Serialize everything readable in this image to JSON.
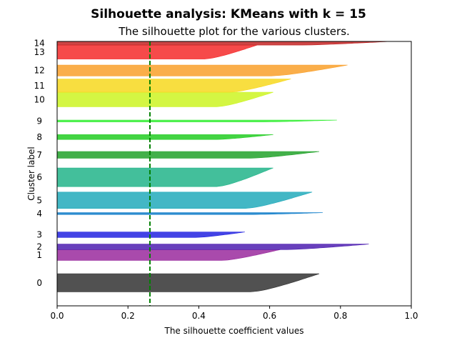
{
  "chart_data": {
    "type": "area",
    "suptitle": "Silhouette analysis: KMeans with k = 15",
    "title": "The silhouette plot for the various clusters.",
    "xlabel": "The silhouette coefficient values",
    "ylabel": "Cluster label",
    "xlim": [
      0.0,
      1.0
    ],
    "x_ticks": [
      "0.0",
      "0.2",
      "0.4",
      "0.6",
      "0.8",
      "1.0"
    ],
    "average_silhouette": 0.262,
    "average_line_color": "#008000",
    "clusters": [
      {
        "label": "0",
        "color": "#333333",
        "max": 0.74,
        "band": [
          0.8,
          3.8
        ]
      },
      {
        "label": "1",
        "color": "#9a2a9e",
        "max": 0.63,
        "band": [
          6.0,
          7.8
        ]
      },
      {
        "label": "2",
        "color": "#4d1fb0",
        "max": 0.88,
        "band": [
          7.8,
          8.7
        ]
      },
      {
        "label": "3",
        "color": "#2222e0",
        "max": 0.53,
        "band": [
          9.8,
          10.7
        ]
      },
      {
        "label": "4",
        "color": "#0a7ac8",
        "max": 0.75,
        "band": [
          13.6,
          13.9
        ]
      },
      {
        "label": "5",
        "color": "#22aabb",
        "max": 0.72,
        "band": [
          14.6,
          17.3
        ]
      },
      {
        "label": "6",
        "color": "#22b48a",
        "max": 0.61,
        "band": [
          18.2,
          21.3
        ]
      },
      {
        "label": "7",
        "color": "#22a22a",
        "max": 0.74,
        "band": [
          22.9,
          24.0
        ]
      },
      {
        "label": "8",
        "color": "#22cc22",
        "max": 0.61,
        "band": [
          26.0,
          26.8
        ]
      },
      {
        "label": "9",
        "color": "#33ee33",
        "max": 0.79,
        "band": [
          28.9,
          29.2
        ]
      },
      {
        "label": "10",
        "color": "#ccf522",
        "max": 0.61,
        "band": [
          31.4,
          33.8
        ]
      },
      {
        "label": "11",
        "color": "#f7d81f",
        "max": 0.66,
        "band": [
          33.8,
          36.0
        ]
      },
      {
        "label": "12",
        "color": "#f9a02a",
        "max": 0.82,
        "band": [
          36.5,
          38.3
        ]
      },
      {
        "label": "13",
        "color": "#f52a2a",
        "max": 0.565,
        "band": [
          39.3,
          41.6
        ]
      },
      {
        "label": "14",
        "color": "#c42424",
        "max": 0.94,
        "band": [
          41.6,
          42.2
        ]
      }
    ],
    "ylim": [
      -1.5,
      42.2
    ]
  }
}
